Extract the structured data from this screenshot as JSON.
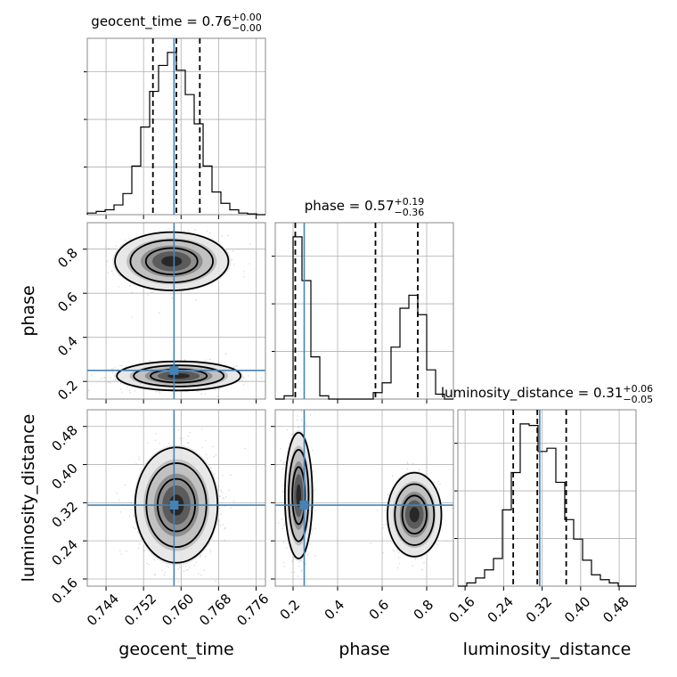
{
  "chart_data": {
    "type": "corner",
    "parameters": [
      {
        "key": "geocent_time",
        "label": "geocent_time",
        "title": "geocent_time = 0.76",
        "title_sup": "+0.00",
        "title_sub": "−0.00",
        "range": [
          0.74,
          0.778
        ],
        "ticks": [
          "0.744",
          "0.752",
          "0.760",
          "0.768",
          "0.776"
        ],
        "tick_values": [
          0.744,
          0.752,
          0.76,
          0.768,
          0.776
        ],
        "truth": 0.7585,
        "quantiles": [
          0.754,
          0.759,
          0.764
        ],
        "hist": {
          "edges": [
            0.74,
            0.7419,
            0.7438,
            0.7457,
            0.7476,
            0.7495,
            0.7514,
            0.7533,
            0.7552,
            0.7571,
            0.759,
            0.7609,
            0.7628,
            0.7647,
            0.7666,
            0.7685,
            0.7704,
            0.7723,
            0.7742,
            0.7761,
            0.778
          ],
          "counts": [
            0.01,
            0.02,
            0.03,
            0.06,
            0.13,
            0.3,
            0.54,
            0.76,
            0.92,
            1.0,
            0.89,
            0.74,
            0.56,
            0.3,
            0.14,
            0.07,
            0.03,
            0.01,
            0.005,
            0.0
          ]
        }
      },
      {
        "key": "phase",
        "label": "phase",
        "title": "phase = 0.57",
        "title_sup": "+0.19",
        "title_sub": "−0.36",
        "range": [
          0.12,
          0.92
        ],
        "ticks": [
          "0.2",
          "0.4",
          "0.6",
          "0.8"
        ],
        "tick_values": [
          0.2,
          0.4,
          0.6,
          0.8
        ],
        "truth": 0.25,
        "quantiles": [
          0.21,
          0.57,
          0.76
        ],
        "hist": {
          "edges": [
            0.12,
            0.16,
            0.2,
            0.24,
            0.28,
            0.32,
            0.36,
            0.4,
            0.44,
            0.48,
            0.52,
            0.56,
            0.6,
            0.64,
            0.68,
            0.72,
            0.76,
            0.8,
            0.84,
            0.88,
            0.92
          ],
          "counts": [
            0.0,
            0.02,
            1.0,
            0.73,
            0.26,
            0.02,
            0.0,
            0.0,
            0.0,
            0.0,
            0.0,
            0.04,
            0.1,
            0.32,
            0.56,
            0.64,
            0.52,
            0.18,
            0.03,
            0.0
          ]
        }
      },
      {
        "key": "luminosity_distance",
        "label": "luminosity_distance",
        "title": "luminosity_distance = 0.31",
        "title_sup": "+0.06",
        "title_sub": "−0.05",
        "range": [
          0.145,
          0.515
        ],
        "ticks": [
          "0.16",
          "0.24",
          "0.32",
          "0.40",
          "0.48"
        ],
        "tick_values": [
          0.16,
          0.24,
          0.32,
          0.4,
          0.48
        ],
        "truth": 0.315,
        "quantiles": [
          0.26,
          0.31,
          0.37
        ],
        "hist": {
          "edges": [
            0.145,
            0.1635,
            0.182,
            0.2005,
            0.219,
            0.2375,
            0.256,
            0.2745,
            0.293,
            0.3115,
            0.33,
            0.3485,
            0.367,
            0.3855,
            0.404,
            0.4225,
            0.441,
            0.4595,
            0.478,
            0.4965,
            0.515
          ],
          "counts": [
            0.0,
            0.02,
            0.05,
            0.1,
            0.17,
            0.47,
            0.7,
            1.0,
            0.99,
            0.83,
            0.85,
            0.64,
            0.41,
            0.29,
            0.16,
            0.07,
            0.04,
            0.02,
            0.0,
            0.0
          ]
        }
      }
    ],
    "pairs": [
      {
        "x": "geocent_time",
        "y": "phase",
        "clusters": [
          {
            "center": [
              0.758,
              0.745
            ],
            "spread": [
              0.0055,
              0.06
            ],
            "weight": 0.45
          },
          {
            "center": [
              0.7595,
              0.225
            ],
            "spread": [
              0.006,
              0.03
            ],
            "weight": 0.55
          }
        ]
      },
      {
        "x": "geocent_time",
        "y": "luminosity_distance",
        "clusters": [
          {
            "center": [
              0.759,
              0.315
            ],
            "spread": [
              0.004,
              0.055
            ],
            "weight": 1.0
          }
        ]
      },
      {
        "x": "phase",
        "y": "luminosity_distance",
        "clusters": [
          {
            "center": [
              0.225,
              0.335
            ],
            "spread": [
              0.028,
              0.06
            ],
            "weight": 0.55
          },
          {
            "center": [
              0.745,
              0.295
            ],
            "spread": [
              0.055,
              0.04
            ],
            "weight": 0.45
          }
        ]
      }
    ],
    "grid": true
  }
}
